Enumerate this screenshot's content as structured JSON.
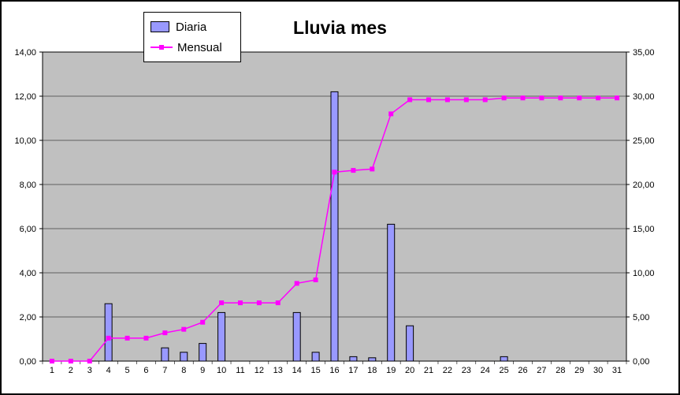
{
  "chart_data": {
    "type": "bar+line",
    "title": "Lluvia mes",
    "plot_bg": "#C0C0C0",
    "categories": [
      1,
      2,
      3,
      4,
      5,
      6,
      7,
      8,
      9,
      10,
      11,
      12,
      13,
      14,
      15,
      16,
      17,
      18,
      19,
      20,
      21,
      22,
      23,
      24,
      25,
      26,
      27,
      28,
      29,
      30,
      31
    ],
    "series": [
      {
        "name": "Diaria",
        "type": "bar",
        "axis": "left",
        "color": "#9999FF",
        "values": [
          0,
          0,
          0,
          2.6,
          0,
          0,
          0.6,
          0.4,
          0.8,
          2.2,
          0,
          0,
          0,
          2.2,
          0.4,
          12.2,
          0.2,
          0.15,
          6.2,
          1.6,
          0,
          0,
          0,
          0,
          0.2,
          0,
          0,
          0,
          0,
          0,
          0
        ]
      },
      {
        "name": "Mensual",
        "type": "line",
        "axis": "right",
        "color": "#FF00FF",
        "values": [
          0,
          0,
          0,
          2.6,
          2.6,
          2.6,
          3.2,
          3.6,
          4.4,
          6.6,
          6.6,
          6.6,
          6.6,
          8.8,
          9.2,
          21.4,
          21.6,
          21.75,
          28.0,
          29.6,
          29.6,
          29.6,
          29.6,
          29.6,
          29.8,
          29.8,
          29.8,
          29.8,
          29.8,
          29.8,
          29.8
        ]
      }
    ],
    "left_axis": {
      "min": 0,
      "max": 14,
      "step": 2,
      "tick_labels": [
        "0,00",
        "2,00",
        "4,00",
        "6,00",
        "8,00",
        "10,00",
        "12,00",
        "14,00"
      ]
    },
    "right_axis": {
      "min": 0,
      "max": 35,
      "step": 5,
      "tick_labels": [
        "0,00",
        "5,00",
        "10,00",
        "15,00",
        "20,00",
        "25,00",
        "30,00",
        "35,00"
      ]
    },
    "x_tick_labels": [
      "1",
      "2",
      "3",
      "4",
      "5",
      "6",
      "7",
      "8",
      "9",
      "10",
      "11",
      "12",
      "13",
      "14",
      "15",
      "16",
      "17",
      "18",
      "19",
      "20",
      "21",
      "22",
      "23",
      "24",
      "25",
      "26",
      "27",
      "28",
      "29",
      "30",
      "31"
    ]
  }
}
